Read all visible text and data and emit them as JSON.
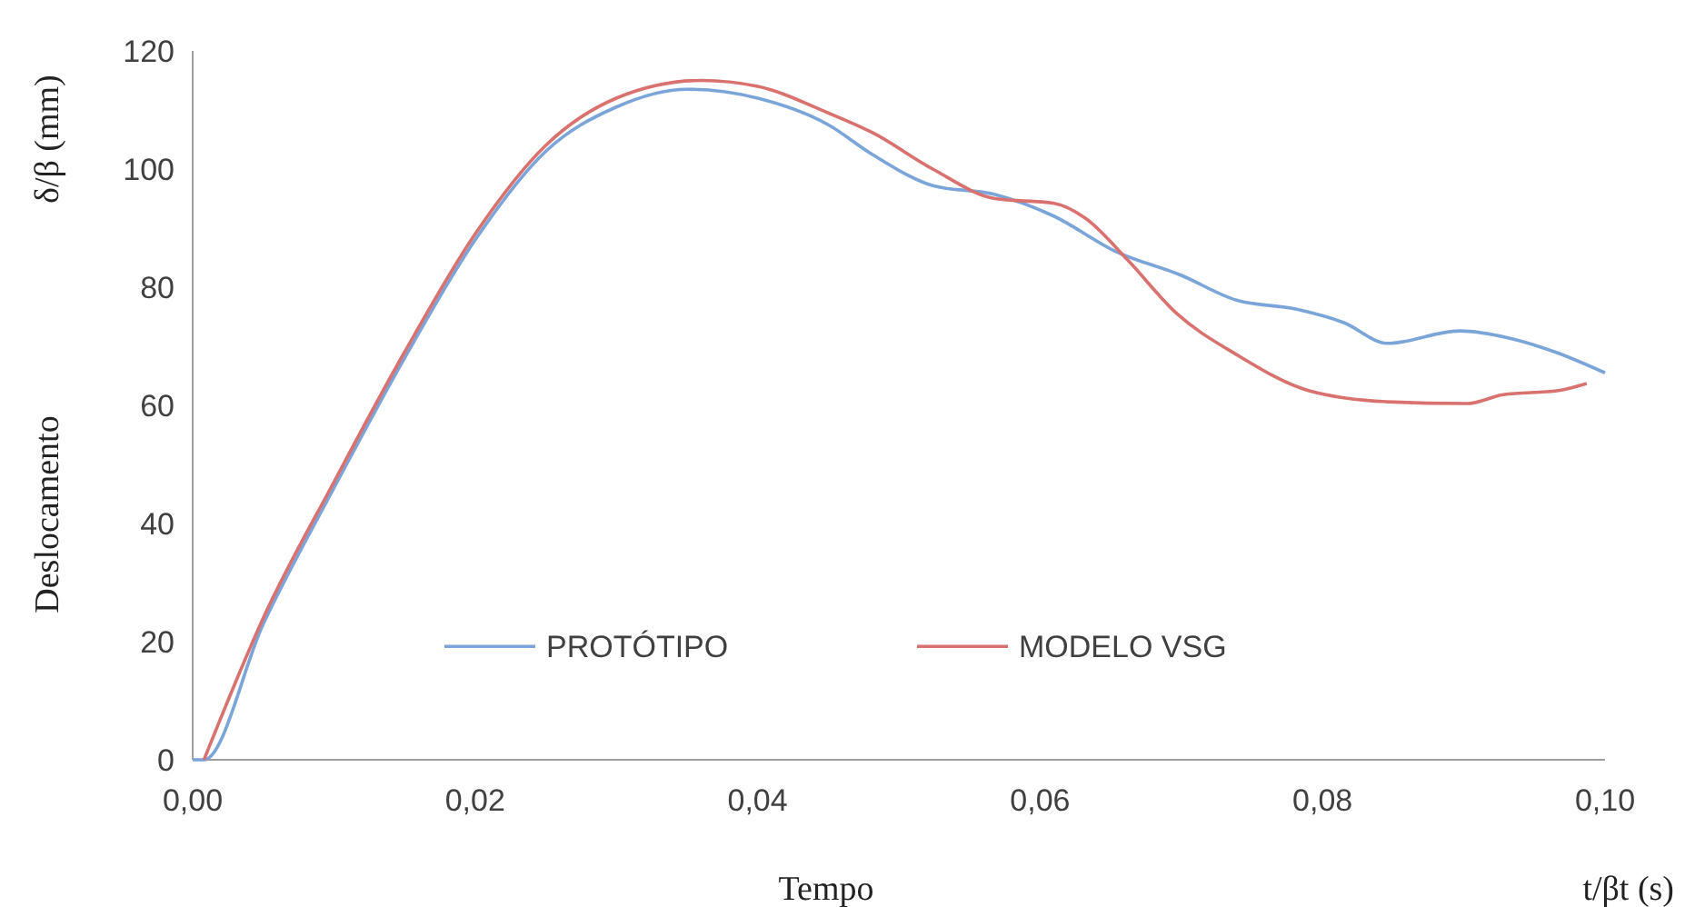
{
  "chart_data": {
    "type": "line",
    "xlabel": "Tempo",
    "ylabel": "Deslocamento",
    "annotations": [
      "δ/β (mm)",
      "t/βt (s)"
    ],
    "xlim": [
      0,
      0.1
    ],
    "ylim": [
      0,
      120
    ],
    "xticks": [
      {
        "value": 0,
        "label": "0,00"
      },
      {
        "value": 0.02,
        "label": "0,02"
      },
      {
        "value": 0.04,
        "label": "0,04"
      },
      {
        "value": 0.06,
        "label": "0,06"
      },
      {
        "value": 0.08,
        "label": "0,08"
      },
      {
        "value": 0.1,
        "label": "0,10"
      }
    ],
    "yticks": [
      0,
      20,
      40,
      60,
      80,
      100,
      120
    ],
    "grid": false,
    "legend": "bottom",
    "marker": "none",
    "line_style": "solid",
    "series": [
      {
        "name": "PROTÓTIPO",
        "color": "#7ba4d9",
        "x": [
          0,
          0.0008,
          0.005,
          0.01,
          0.015,
          0.02,
          0.025,
          0.03,
          0.035,
          0.04,
          0.045,
          0.0481,
          0.0524,
          0.0568,
          0.061,
          0.0653,
          0.07,
          0.0739,
          0.0781,
          0.0815,
          0.0846,
          0.0897,
          0.0932,
          0.0965,
          0.1
        ],
        "values": [
          0,
          0,
          23,
          46,
          68,
          88,
          103,
          110.5,
          113.5,
          112,
          107.5,
          102.5,
          97.2,
          95.7,
          92,
          86.1,
          82,
          77.8,
          76.3,
          74,
          70.5,
          72.6,
          71.4,
          69,
          65.5
        ]
      },
      {
        "name": "MODELO VSG",
        "color": "#d9716f",
        "x": [
          0.0008,
          0.005,
          0.01,
          0.015,
          0.02,
          0.025,
          0.03,
          0.036,
          0.04,
          0.045,
          0.0481,
          0.0524,
          0.0568,
          0.061,
          0.0632,
          0.0662,
          0.0696,
          0.0739,
          0.079,
          0.0846,
          0.0902,
          0.0928,
          0.0967,
          0.0987
        ],
        "values": [
          0,
          24,
          47,
          69,
          89,
          104,
          112,
          115,
          114,
          109.5,
          106.2,
          100,
          95,
          94.2,
          91.7,
          84.6,
          75.7,
          68.6,
          62.5,
          60.6,
          60.3,
          61.8,
          62.5,
          63.7
        ]
      }
    ]
  }
}
